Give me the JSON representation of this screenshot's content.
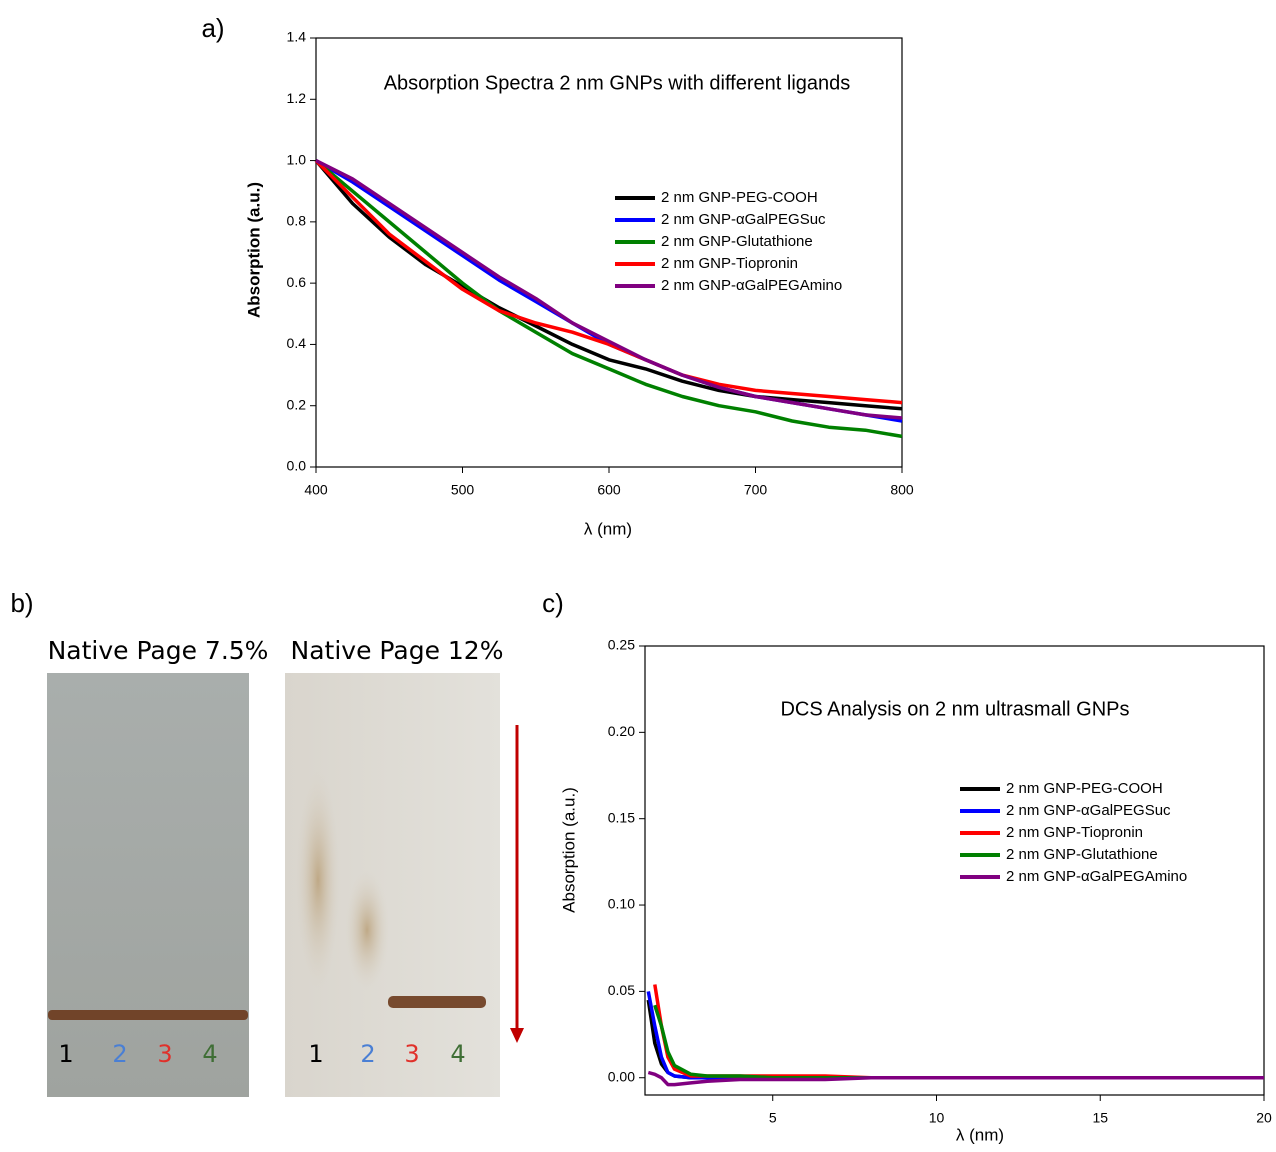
{
  "panels": {
    "a": "a)",
    "b": "b)",
    "c": "c)"
  },
  "gels": [
    {
      "title": "Native Page 7.5%",
      "lanes": [
        "1",
        "2",
        "3",
        "4"
      ]
    },
    {
      "title": "Native Page 12%",
      "lanes": [
        "1",
        "2",
        "3",
        "4"
      ]
    }
  ],
  "chart_data": [
    {
      "type": "line",
      "title": "Absorption Spectra 2 nm GNPs with different ligands",
      "x_label": "λ (nm)",
      "y_label": "Absorption (a.u.)",
      "x": [
        400,
        425,
        450,
        475,
        500,
        525,
        550,
        575,
        600,
        625,
        650,
        675,
        700,
        725,
        750,
        775,
        800
      ],
      "xlim": [
        400,
        800
      ],
      "xticks": [
        400,
        500,
        600,
        700,
        800
      ],
      "ylim": [
        0,
        1.4
      ],
      "yticks": [
        {
          "value": 0,
          "label": "0.0"
        },
        {
          "value": 0.2,
          "label": "0.2"
        },
        {
          "value": 0.4,
          "label": "0.4"
        },
        {
          "value": 0.6,
          "label": "0.6"
        },
        {
          "value": 0.8,
          "label": "0.8"
        },
        {
          "value": 1,
          "label": "1.0"
        },
        {
          "value": 1.2,
          "label": "1.2"
        },
        {
          "value": 1.4,
          "label": "1.4"
        }
      ],
      "series": [
        {
          "name": "2 nm GNP-PEG-COOH",
          "color": "#000000",
          "values": [
            1.0,
            0.86,
            0.75,
            0.66,
            0.59,
            0.52,
            0.46,
            0.4,
            0.35,
            0.32,
            0.28,
            0.25,
            0.23,
            0.22,
            0.21,
            0.2,
            0.19
          ]
        },
        {
          "name": "2 nm GNP-αGalPEGSuc",
          "color": "#0000ff",
          "values": [
            1.0,
            0.93,
            0.85,
            0.77,
            0.69,
            0.61,
            0.54,
            0.47,
            0.4,
            0.35,
            0.3,
            0.26,
            0.23,
            0.21,
            0.19,
            0.17,
            0.15
          ]
        },
        {
          "name": "2 nm GNP-Glutathione",
          "color": "#008000",
          "values": [
            1.0,
            0.9,
            0.8,
            0.7,
            0.6,
            0.51,
            0.44,
            0.37,
            0.32,
            0.27,
            0.23,
            0.2,
            0.18,
            0.15,
            0.13,
            0.12,
            0.1
          ]
        },
        {
          "name": "2 nm GNP-Tiopronin",
          "color": "#ff0000",
          "values": [
            1.0,
            0.88,
            0.76,
            0.67,
            0.58,
            0.51,
            0.47,
            0.44,
            0.4,
            0.35,
            0.3,
            0.27,
            0.25,
            0.24,
            0.23,
            0.22,
            0.21
          ]
        },
        {
          "name": "2 nm GNP-αGalPEGAmino",
          "color": "#800080",
          "values": [
            1.0,
            0.94,
            0.86,
            0.78,
            0.7,
            0.62,
            0.55,
            0.47,
            0.41,
            0.35,
            0.3,
            0.26,
            0.23,
            0.21,
            0.19,
            0.17,
            0.16
          ]
        }
      ]
    },
    {
      "type": "line",
      "title": "DCS Analysis on 2 nm ultrasmall GNPs",
      "x_label": "λ (nm)",
      "y_label": "Absorption (a.u.)",
      "x": [
        1.2,
        1.4,
        1.6,
        1.8,
        2,
        2.5,
        3,
        4,
        5,
        6.6,
        8,
        10,
        15,
        20
      ],
      "xlim": [
        1.1,
        20
      ],
      "xticks": [
        5,
        10,
        15,
        20
      ],
      "ylim": [
        -0.01,
        0.25
      ],
      "yticks": [
        {
          "value": 0,
          "label": "0.00"
        },
        {
          "value": 0.05,
          "label": "0.05"
        },
        {
          "value": 0.1,
          "label": "0.10"
        },
        {
          "value": 0.15,
          "label": "0.15"
        },
        {
          "value": 0.2,
          "label": "0.20"
        },
        {
          "value": 0.25,
          "label": "0.25"
        }
      ],
      "series": [
        {
          "name": "2 nm GNP-PEG-COOH",
          "color": "#000000",
          "values": [
            0.045,
            0.02,
            0.008,
            0.003,
            0.001,
            0,
            0,
            0,
            0,
            0,
            0,
            0,
            0,
            0
          ]
        },
        {
          "name": "2 nm GNP-αGalPEGSuc",
          "color": "#0000ff",
          "values": [
            0.05,
            0.03,
            0.012,
            0.003,
            0.001,
            0,
            0,
            0,
            0,
            0,
            0,
            0,
            0,
            0
          ]
        },
        {
          "name": "2 nm GNP-Tiopronin",
          "color": "#ff0000",
          "values": [
            null,
            0.054,
            0.03,
            0.012,
            0.005,
            0.001,
            0.001,
            0.001,
            0.001,
            0.001,
            0,
            0,
            0,
            0
          ]
        },
        {
          "name": "2 nm GNP-Glutathione",
          "color": "#008000",
          "values": [
            null,
            0.042,
            0.03,
            0.015,
            0.007,
            0.002,
            0.001,
            0.001,
            0,
            0,
            0,
            0,
            0,
            0
          ]
        },
        {
          "name": "2 nm GNP-αGalPEGAmino",
          "color": "#800080",
          "values": [
            0.003,
            0.002,
            0,
            -0.004,
            -0.004,
            -0.003,
            -0.002,
            -0.001,
            -0.001,
            -0.001,
            0,
            0,
            0,
            0
          ]
        }
      ]
    }
  ]
}
